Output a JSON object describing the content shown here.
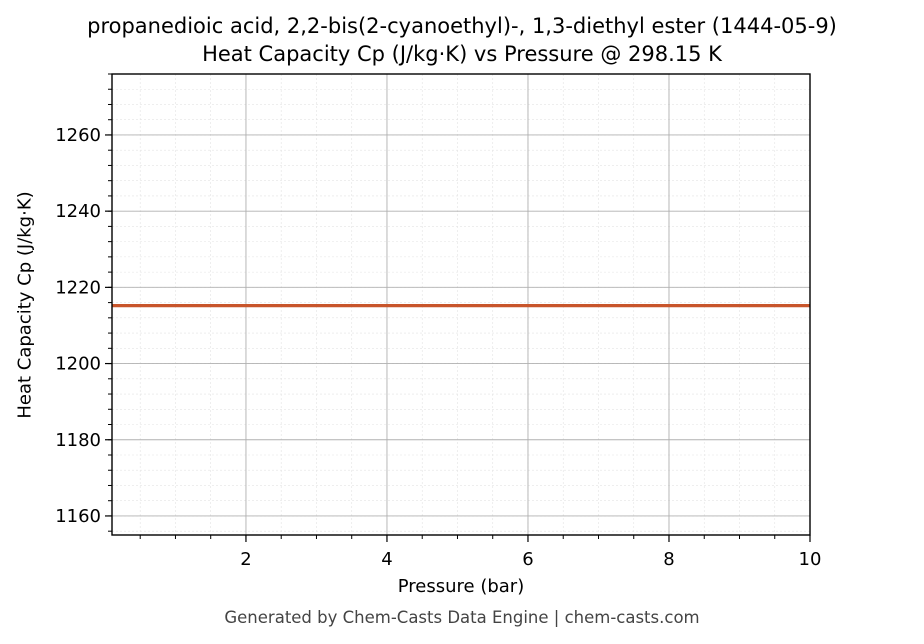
{
  "chart_data": {
    "type": "line",
    "title": "propanedioic acid, 2,2-bis(2-cyanoethyl)-, 1,3-diethyl ester (1444-05-9)",
    "subtitle": "Heat Capacity Cp (J/kg·K) vs Pressure @ 298.15 K",
    "xlabel": "Pressure (bar)",
    "ylabel": "Heat Capacity Cp (J/kg·K)",
    "xlim": [
      0.1,
      10
    ],
    "ylim": [
      1155,
      1276
    ],
    "x_ticks": [
      2,
      4,
      6,
      8,
      10
    ],
    "y_ticks": [
      1160,
      1180,
      1200,
      1220,
      1240,
      1260
    ],
    "grid": true,
    "series": [
      {
        "color": "#c8552b",
        "x": [
          0.1,
          1,
          2,
          3,
          4,
          5,
          6,
          7,
          8,
          9,
          10
        ],
        "y": [
          1215.2,
          1215.2,
          1215.2,
          1215.2,
          1215.2,
          1215.2,
          1215.2,
          1215.2,
          1215.2,
          1215.2,
          1215.2
        ]
      }
    ]
  },
  "footer": "Generated by Chem-Casts Data Engine | chem-casts.com"
}
